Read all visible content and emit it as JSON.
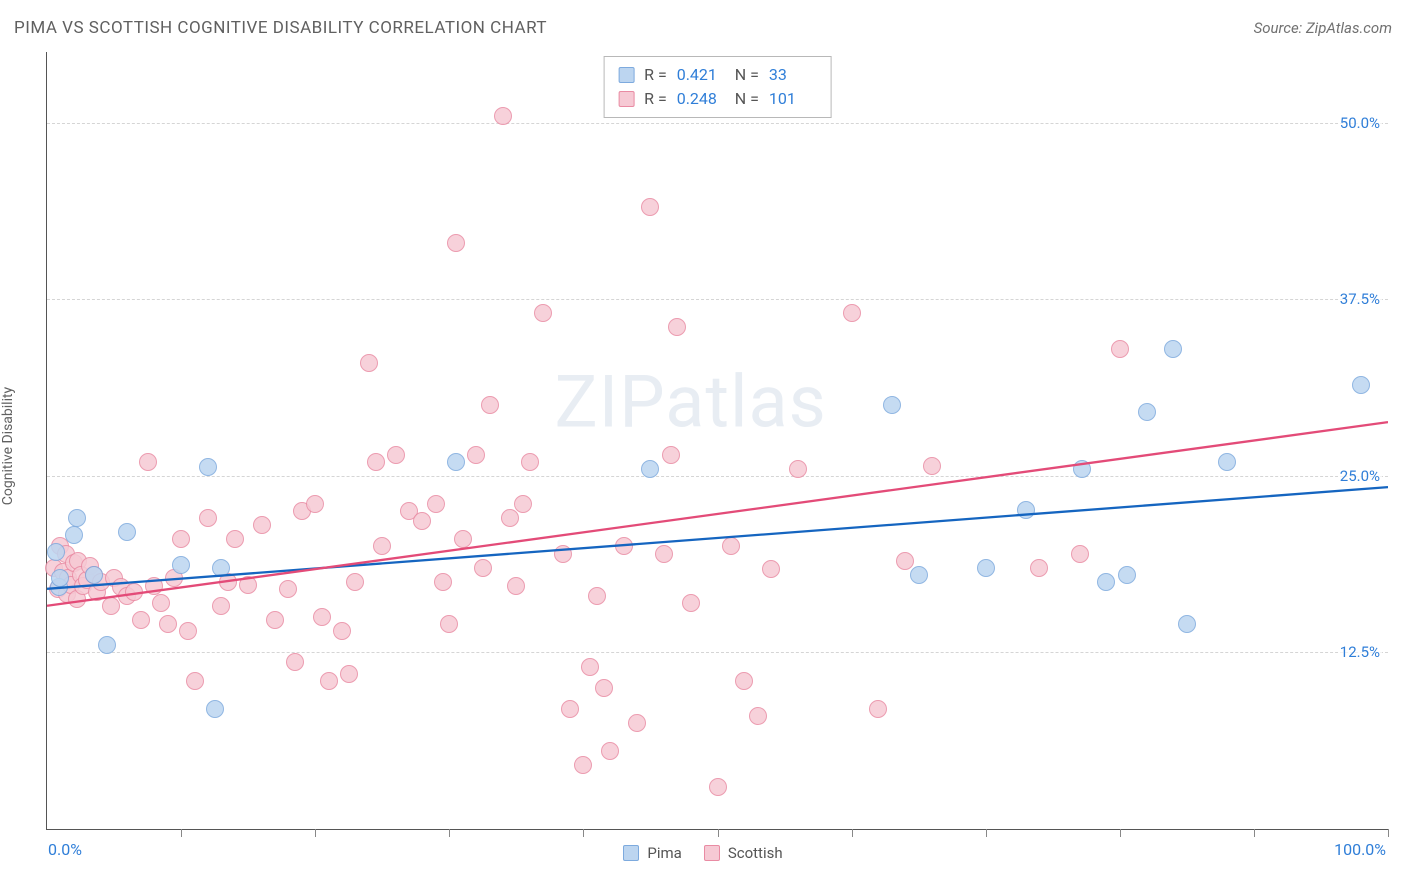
{
  "title": "PIMA VS SCOTTISH COGNITIVE DISABILITY CORRELATION CHART",
  "source": "Source: ZipAtlas.com",
  "y_axis_label": "Cognitive Disability",
  "watermark": {
    "pref": "ZIP",
    "suffix": "atlas"
  },
  "colors": {
    "series_a_fill": "#bcd5f0",
    "series_a_stroke": "#7daade",
    "series_b_fill": "#f6c9d4",
    "series_b_stroke": "#e98ba3",
    "trend_a": "#1565c0",
    "trend_b": "#e34b78",
    "tick_label": "#2f7ed8",
    "grid": "#d5d5d5",
    "axis": "#555555",
    "text": "#606060"
  },
  "chart": {
    "type": "scatter",
    "xlim": [
      0,
      100
    ],
    "ylim": [
      0,
      55
    ],
    "y_ticks": [
      {
        "v": 12.5,
        "label": "12.5%"
      },
      {
        "v": 25.0,
        "label": "25.0%"
      },
      {
        "v": 37.5,
        "label": "37.5%"
      },
      {
        "v": 50.0,
        "label": "50.0%"
      }
    ],
    "x_tick_positions": [
      10,
      20,
      30,
      40,
      50,
      60,
      70,
      80,
      90,
      100
    ],
    "x_left_label": "0.0%",
    "x_right_label": "100.0%",
    "marker_radius": 9,
    "marker_border_width": 1.3,
    "trend_width": 2.3,
    "series": [
      {
        "name": "Pima",
        "key": "a",
        "R": "0.421",
        "N": "33",
        "trend": {
          "x1": 0,
          "y1": 17.0,
          "x2": 100,
          "y2": 24.2
        },
        "points": [
          [
            0.7,
            19.6
          ],
          [
            0.9,
            17.1
          ],
          [
            1,
            17.8
          ],
          [
            2.0,
            20.8
          ],
          [
            2.2,
            22.0
          ],
          [
            3.5,
            18.0
          ],
          [
            4.5,
            13.0
          ],
          [
            6,
            21.0
          ],
          [
            10,
            18.7
          ],
          [
            12,
            25.6
          ],
          [
            12.5,
            8.5
          ],
          [
            13,
            18.5
          ],
          [
            30.5,
            26.0
          ],
          [
            45,
            25.5
          ],
          [
            63,
            30.0
          ],
          [
            65,
            18.0
          ],
          [
            70,
            18.5
          ],
          [
            73,
            22.6
          ],
          [
            77.2,
            25.5
          ],
          [
            79,
            17.5
          ],
          [
            80.5,
            18.0
          ],
          [
            82,
            29.5
          ],
          [
            84,
            34.0
          ],
          [
            85,
            14.5
          ],
          [
            88,
            26.0
          ],
          [
            98,
            31.4
          ]
        ]
      },
      {
        "name": "Scottish",
        "key": "b",
        "R": "0.248",
        "N": "101",
        "trend": {
          "x1": 0,
          "y1": 15.8,
          "x2": 100,
          "y2": 28.8
        },
        "points": [
          [
            0.5,
            18.5
          ],
          [
            0.8,
            17.0
          ],
          [
            1,
            20.0
          ],
          [
            1.2,
            18.2
          ],
          [
            1.4,
            19.5
          ],
          [
            1.5,
            16.6
          ],
          [
            1.6,
            17.8
          ],
          [
            1.8,
            17.3
          ],
          [
            2,
            18.8
          ],
          [
            2.2,
            16.3
          ],
          [
            2.3,
            19.0
          ],
          [
            2.5,
            18.0
          ],
          [
            2.7,
            17.2
          ],
          [
            3,
            17.6
          ],
          [
            3.2,
            18.6
          ],
          [
            3.5,
            18.0
          ],
          [
            3.7,
            16.8
          ],
          [
            4,
            17.5
          ],
          [
            4.8,
            15.8
          ],
          [
            5,
            17.8
          ],
          [
            5.5,
            17.1
          ],
          [
            6,
            16.5
          ],
          [
            6.5,
            16.8
          ],
          [
            7,
            14.8
          ],
          [
            7.5,
            26.0
          ],
          [
            8,
            17.2
          ],
          [
            8.5,
            16.0
          ],
          [
            9,
            14.5
          ],
          [
            9.5,
            17.8
          ],
          [
            10,
            20.5
          ],
          [
            10.5,
            14.0
          ],
          [
            11,
            10.5
          ],
          [
            12,
            22.0
          ],
          [
            13,
            15.8
          ],
          [
            13.5,
            17.5
          ],
          [
            14,
            20.5
          ],
          [
            15,
            17.3
          ],
          [
            16,
            21.5
          ],
          [
            17,
            14.8
          ],
          [
            18,
            17.0
          ],
          [
            18.5,
            11.8
          ],
          [
            19,
            22.5
          ],
          [
            20,
            23.0
          ],
          [
            20.5,
            15.0
          ],
          [
            21,
            10.5
          ],
          [
            22,
            14.0
          ],
          [
            22.5,
            11.0
          ],
          [
            23,
            17.5
          ],
          [
            24,
            33.0
          ],
          [
            24.5,
            26.0
          ],
          [
            25,
            20.0
          ],
          [
            26,
            26.5
          ],
          [
            27,
            22.5
          ],
          [
            28,
            21.8
          ],
          [
            29,
            23.0
          ],
          [
            29.5,
            17.5
          ],
          [
            30,
            14.5
          ],
          [
            30.5,
            41.5
          ],
          [
            31,
            20.5
          ],
          [
            32,
            26.5
          ],
          [
            32.5,
            18.5
          ],
          [
            33,
            30.0
          ],
          [
            34,
            50.5
          ],
          [
            34.5,
            22.0
          ],
          [
            35,
            17.2
          ],
          [
            35.5,
            23.0
          ],
          [
            36,
            26.0
          ],
          [
            37,
            36.5
          ],
          [
            38.5,
            19.5
          ],
          [
            39,
            8.5
          ],
          [
            40,
            4.5
          ],
          [
            40.5,
            11.5
          ],
          [
            41,
            16.5
          ],
          [
            41.5,
            10.0
          ],
          [
            42,
            5.5
          ],
          [
            43,
            20.0
          ],
          [
            44,
            7.5
          ],
          [
            45,
            44.0
          ],
          [
            46,
            19.5
          ],
          [
            46.5,
            26.5
          ],
          [
            47,
            35.5
          ],
          [
            48,
            16.0
          ],
          [
            50,
            3.0
          ],
          [
            51,
            20.0
          ],
          [
            52,
            10.5
          ],
          [
            53,
            8.0
          ],
          [
            54,
            18.4
          ],
          [
            56,
            25.5
          ],
          [
            60,
            36.5
          ],
          [
            62,
            8.5
          ],
          [
            64,
            19.0
          ],
          [
            66,
            25.7
          ],
          [
            74,
            18.5
          ],
          [
            77,
            19.5
          ],
          [
            80,
            34.0
          ]
        ]
      }
    ]
  },
  "legend": {
    "a_label": "Pima",
    "b_label": "Scottish"
  },
  "stats_labels": {
    "R": "R =",
    "N": "N ="
  }
}
